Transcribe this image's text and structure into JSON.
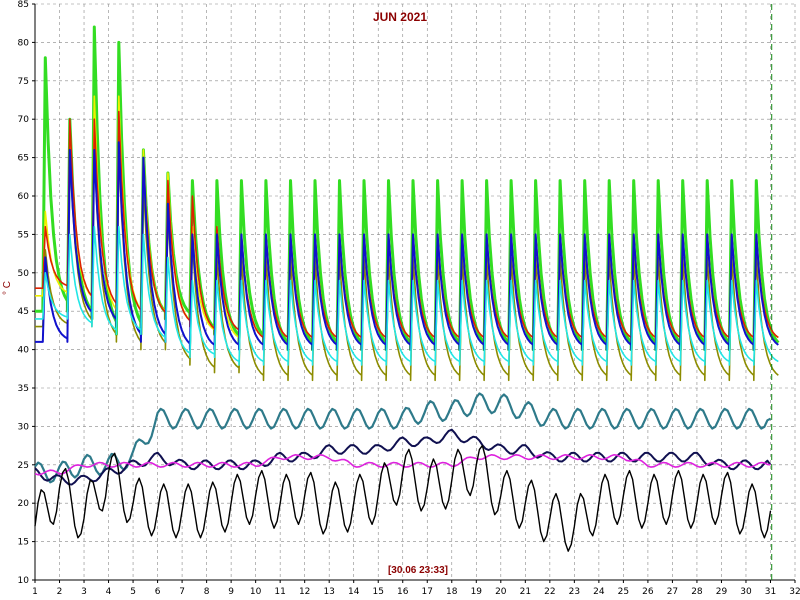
{
  "chart_data": {
    "type": "line",
    "title": "JUN 2021",
    "ylabel": "° C",
    "xlabel": "",
    "timestamp": "[30.06 23:33]",
    "xlim": [
      1,
      32
    ],
    "ylim": [
      10,
      85
    ],
    "xticks": [
      1,
      2,
      3,
      4,
      5,
      6,
      7,
      8,
      9,
      10,
      11,
      12,
      13,
      14,
      15,
      16,
      17,
      18,
      19,
      20,
      21,
      22,
      23,
      24,
      25,
      26,
      27,
      28,
      29,
      30,
      31,
      32
    ],
    "yticks": [
      10,
      15,
      20,
      25,
      30,
      35,
      40,
      45,
      50,
      55,
      60,
      65,
      70,
      75,
      80,
      85
    ],
    "grid": true,
    "colors": {
      "green": "#33dd22",
      "red": "#dd2200",
      "yellow": "#eeee00",
      "olive": "#8c8c00",
      "blue": "#1111cc",
      "cyan": "#22e6e6",
      "teal": "#2e7a8a",
      "navy": "#101050",
      "magenta": "#dd22dd",
      "black": "#000000",
      "title": "#8b0000",
      "grid": "#888888"
    },
    "series": [
      {
        "key": "green",
        "peak": [
          78,
          70,
          82,
          80,
          66,
          63,
          62,
          62,
          62,
          62,
          62,
          62,
          62,
          62,
          62,
          62,
          62,
          62,
          62,
          62,
          62,
          62,
          62,
          62,
          62,
          62,
          62,
          62,
          62,
          62
        ],
        "min": [
          45,
          44,
          42,
          42,
          44,
          44,
          42,
          41,
          41,
          40,
          40,
          40,
          40,
          40,
          40,
          40,
          40,
          40,
          40,
          40,
          40,
          40,
          40,
          40,
          40,
          40,
          40,
          40,
          40,
          40
        ]
      },
      {
        "key": "yellow",
        "peak": [
          58,
          68,
          73,
          73,
          66,
          63,
          56,
          55,
          55,
          55,
          55,
          55,
          55,
          55,
          55,
          55,
          55,
          55,
          55,
          55,
          55,
          55,
          55,
          55,
          55,
          55,
          55,
          55,
          55,
          55
        ],
        "min": [
          47,
          46,
          44,
          44,
          44,
          43,
          42,
          41,
          41,
          41,
          41,
          41,
          41,
          41,
          41,
          41,
          41,
          41,
          41,
          41,
          41,
          41,
          41,
          41,
          41,
          41,
          41,
          41,
          41,
          41
        ]
      },
      {
        "key": "red",
        "peak": [
          56,
          70,
          70,
          71,
          65,
          62,
          60,
          56,
          55,
          55,
          55,
          55,
          55,
          55,
          55,
          55,
          55,
          55,
          55,
          55,
          55,
          55,
          55,
          55,
          55,
          55,
          55,
          55,
          55,
          55
        ],
        "min": [
          48,
          46,
          45,
          44,
          44,
          43,
          42,
          42,
          41,
          41,
          41,
          41,
          41,
          41,
          41,
          41,
          41,
          41,
          41,
          41,
          41,
          41,
          41,
          41,
          41,
          41,
          41,
          41,
          41,
          41
        ]
      },
      {
        "key": "olive",
        "peak": [
          53,
          66,
          66,
          66,
          62,
          58,
          54,
          52,
          52,
          52,
          52,
          52,
          52,
          52,
          52,
          52,
          52,
          52,
          52,
          52,
          52,
          52,
          52,
          52,
          52,
          52,
          52,
          52,
          52,
          52
        ],
        "min": [
          43,
          43,
          41,
          40,
          40,
          38,
          37,
          37,
          36,
          36,
          36,
          36,
          36,
          36,
          36,
          36,
          36,
          36,
          36,
          36,
          36,
          36,
          36,
          36,
          36,
          36,
          36,
          36,
          36,
          36
        ]
      },
      {
        "key": "blue",
        "peak": [
          52,
          66,
          66,
          67,
          65,
          59,
          55,
          55,
          55,
          55,
          55,
          55,
          55,
          55,
          55,
          55,
          55,
          55,
          55,
          55,
          55,
          55,
          55,
          55,
          55,
          55,
          55,
          55,
          55,
          55
        ],
        "min": [
          41,
          44,
          43,
          41,
          41,
          40,
          40,
          40,
          40,
          40,
          40,
          40,
          40,
          40,
          40,
          40,
          40,
          40,
          40,
          40,
          40,
          40,
          40,
          40,
          40,
          40,
          40,
          40,
          40,
          40
        ]
      },
      {
        "key": "cyan",
        "peak": [
          50,
          55,
          56,
          56,
          55,
          52,
          49,
          49,
          49,
          49,
          49,
          49,
          49,
          49,
          49,
          49,
          49,
          49,
          49,
          49,
          49,
          49,
          49,
          49,
          49,
          49,
          49,
          49,
          49,
          49
        ],
        "min": [
          44,
          43,
          42,
          42,
          41,
          39,
          39,
          38,
          38,
          38,
          38,
          38,
          38,
          38,
          38,
          38,
          38,
          38,
          38,
          38,
          38,
          38,
          38,
          38,
          38,
          38,
          38,
          38,
          38,
          38
        ]
      },
      {
        "key": "teal",
        "daily": [
          24,
          24,
          25,
          25,
          26,
          31,
          31,
          31,
          31,
          31,
          31,
          31,
          31,
          31,
          31,
          31,
          32,
          32,
          33,
          33,
          32,
          31,
          31,
          31,
          31,
          31,
          31,
          31,
          31,
          31
        ]
      },
      {
        "key": "navy",
        "daily": [
          24,
          23,
          23,
          24,
          25,
          26,
          25,
          25,
          25,
          25,
          26,
          26,
          27,
          27,
          27,
          28,
          28,
          29,
          28,
          27,
          27,
          26,
          26,
          26,
          26,
          26,
          26,
          26,
          25,
          25
        ]
      },
      {
        "key": "magenta",
        "daily": [
          24,
          24,
          25,
          25,
          25,
          25,
          25,
          25,
          25,
          25,
          26,
          26,
          26,
          25,
          25,
          25,
          25,
          25,
          26,
          26,
          26,
          26,
          26,
          26,
          26,
          25,
          25,
          25,
          25,
          25
        ]
      },
      {
        "key": "black",
        "daily": [
          17,
          22,
          18,
          24,
          20,
          19,
          19,
          19,
          20,
          21,
          20,
          21,
          19,
          20,
          21,
          24,
          22,
          23,
          25,
          21,
          20,
          18,
          17,
          20,
          21,
          20,
          21,
          20,
          21,
          19
        ]
      }
    ]
  }
}
